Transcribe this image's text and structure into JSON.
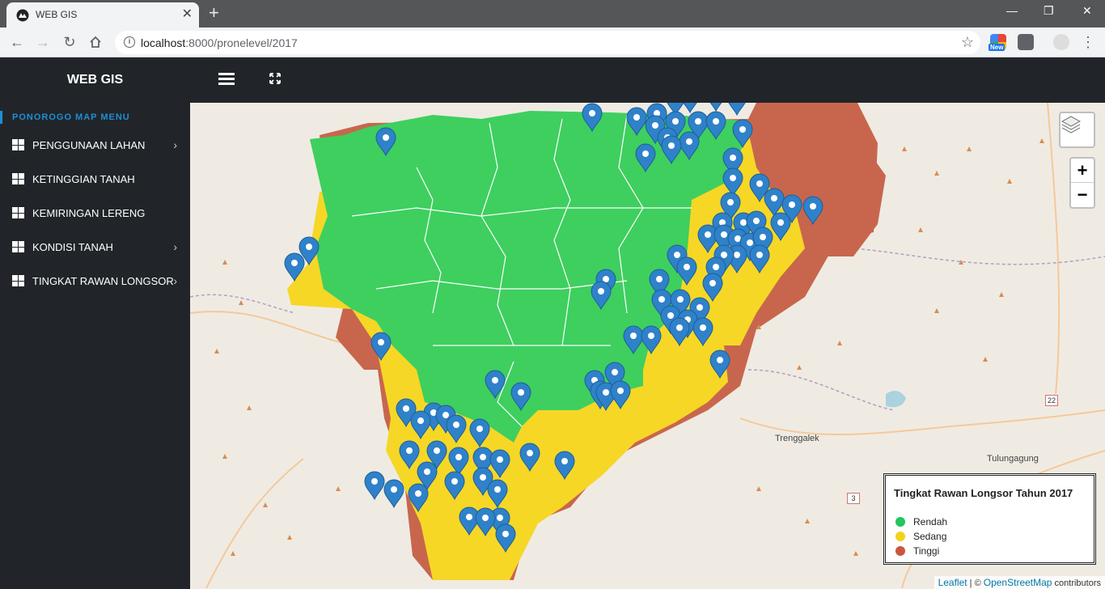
{
  "browser": {
    "tab_title": "WEB GIS",
    "url_host": "localhost",
    "url_path": ":8000/pronelevel/2017",
    "new_badge": "New"
  },
  "header": {
    "brand": "WEB GIS",
    "hamburger_icon": "menu-icon",
    "fullscreen_icon": "expand-icon"
  },
  "sidebar": {
    "heading": "PONOROGO MAP MENU",
    "items": [
      {
        "label": "PENGGUNAAN LAHAN",
        "has_submenu": true
      },
      {
        "label": "KETINGGIAN TANAH",
        "has_submenu": false
      },
      {
        "label": "KEMIRINGAN LERENG",
        "has_submenu": false
      },
      {
        "label": "KONDISI TANAH",
        "has_submenu": true
      },
      {
        "label": "TINGKAT RAWAN LONGSOR",
        "has_submenu": true
      }
    ]
  },
  "map": {
    "places": [
      "Trenggalek",
      "Tulungagung"
    ],
    "road_shields": [
      "22",
      "3"
    ],
    "zoom_in": "+",
    "zoom_out": "−",
    "legend": {
      "title": "Tingkat Rawan Longsor Tahun 2017",
      "items": [
        {
          "label": "Rendah",
          "color": "#22c55e"
        },
        {
          "label": "Sedang",
          "color": "#f2d21b"
        },
        {
          "label": "Tinggi",
          "color": "#c8573e"
        }
      ]
    },
    "attribution": {
      "leaflet": "Leaflet",
      "sep": " | © ",
      "osm": "OpenStreetMap",
      "suffix": " contributors"
    },
    "colors": {
      "low": "#3ecf5f",
      "medium": "#f6d726",
      "high": "#c8664d",
      "marker": "#2f82c9"
    }
  }
}
